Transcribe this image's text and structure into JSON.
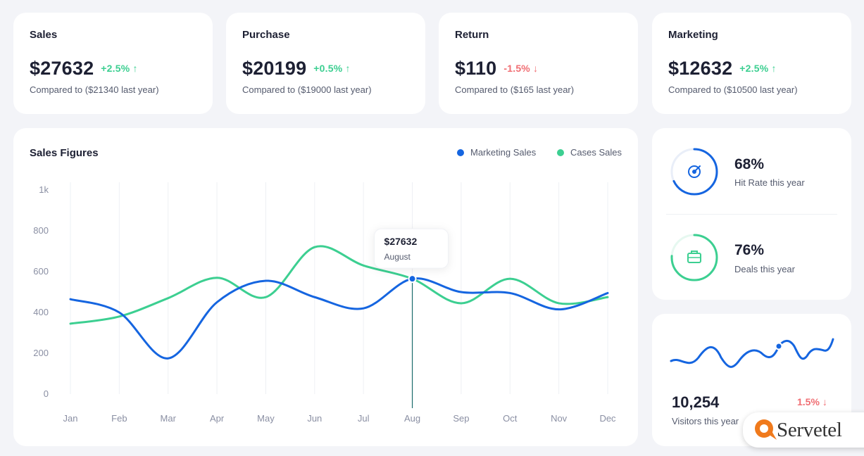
{
  "stats": [
    {
      "title": "Sales",
      "value": "$27632",
      "change": "+2.5%",
      "direction": "up",
      "compare": "Compared to ($21340 last year)"
    },
    {
      "title": "Purchase",
      "value": "$20199",
      "change": "+0.5%",
      "direction": "up",
      "compare": "Compared to ($19000 last year)"
    },
    {
      "title": "Return",
      "value": "$110",
      "change": "-1.5%",
      "direction": "down",
      "compare": "Compared to ($165 last year)"
    },
    {
      "title": "Marketing",
      "value": "$12632",
      "change": "+2.5%",
      "direction": "up",
      "compare": "Compared to ($10500 last year)"
    }
  ],
  "arrows": {
    "up": "↑",
    "down": "↓"
  },
  "colors": {
    "marketing": "#1565e0",
    "cases": "#3ccf91",
    "up": "#3ccf91",
    "down": "#f06e73",
    "accent": "#1565e0"
  },
  "chart_data": {
    "type": "line",
    "title": "Sales Figures",
    "categories": [
      "Jan",
      "Feb",
      "Mar",
      "Apr",
      "May",
      "Jun",
      "Jul",
      "Aug",
      "Sep",
      "Oct",
      "Nov",
      "Dec"
    ],
    "y_ticks": [
      "0",
      "200",
      "400",
      "600",
      "800",
      "1k"
    ],
    "ylim": [
      0,
      1000
    ],
    "grid": true,
    "legend_position": "top-right",
    "series": [
      {
        "name": "Marketing Sales",
        "color": "#1565e0",
        "values": [
          465,
          400,
          175,
          450,
          555,
          475,
          420,
          565,
          500,
          495,
          415,
          495
        ]
      },
      {
        "name": "Cases Sales",
        "color": "#3ccf91",
        "values": [
          345,
          380,
          470,
          570,
          475,
          720,
          630,
          565,
          445,
          565,
          445,
          475
        ]
      }
    ],
    "tooltip": {
      "value": "$27632",
      "label": "August",
      "category_index": 7
    }
  },
  "rings": [
    {
      "value": "68%",
      "fraction": 0.68,
      "label": "Hit Rate this year",
      "icon": "target-icon"
    },
    {
      "value": "76%",
      "fraction": 0.76,
      "label": "Deals this year",
      "icon": "briefcase-icon"
    }
  ],
  "visitors": {
    "value": "10,254",
    "label": "Visitors this year",
    "change": "1.5%",
    "arrow": "↓"
  },
  "logo": {
    "text": "Servetel"
  }
}
